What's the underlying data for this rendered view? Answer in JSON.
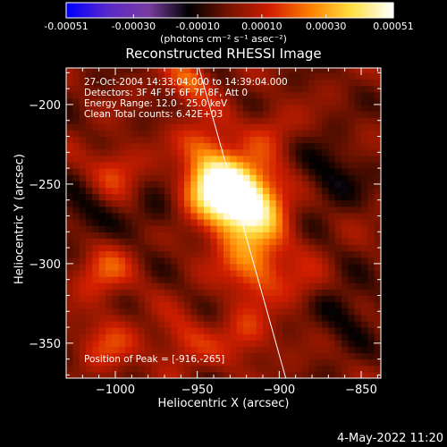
{
  "colors": {
    "background": "#000000",
    "foreground": "#ffffff",
    "colormap": [
      "#0000ff",
      "#5a28c8",
      "#7a3ca0",
      "#000000",
      "#781400",
      "#d21e00",
      "#ff8000",
      "#ffe040",
      "#ffffff"
    ]
  },
  "colorbar": {
    "tick_labels": [
      "-0.00051",
      "-0.00030",
      "-0.00010",
      "0.00010",
      "0.00030",
      "0.00051"
    ],
    "tick_values": [
      -0.00051,
      -0.0003,
      -0.0001,
      0.0001,
      0.0003,
      0.00051
    ],
    "range": [
      -0.00051,
      0.00051
    ],
    "units_label": "(photons cm⁻² s⁻¹ asec⁻²)"
  },
  "chart_data": {
    "type": "heatmap",
    "title": "Reconstructed RHESSI Image",
    "xlabel": "Heliocentric X (arcsec)",
    "ylabel": "Heliocentric Y (arcsec)",
    "xlim": [
      -1030,
      -838
    ],
    "ylim": [
      -372,
      -177
    ],
    "x_ticks": [
      -1000,
      -950,
      -900,
      -850
    ],
    "y_ticks": [
      -350,
      -300,
      -250,
      -200
    ],
    "x_tick_labels": [
      "−1000",
      "−950",
      "−900",
      "−850"
    ],
    "y_tick_labels": [
      "−350",
      "−300",
      "−250",
      "−200"
    ],
    "annotations": [
      "27-Oct-2004 14:33:04.000 to 14:39:04.000",
      "Detectors: 3F 4F 5F 6F 7F 8F, Att 0",
      "Energy Range: 12.0 - 25.0 keV",
      "Clean     Total counts: 6.42E+03"
    ],
    "peak_label": "Position of Peak = [-916,-265]",
    "peak_position": [
      -916,
      -265
    ],
    "limb_line": [
      [
        -949,
        -177
      ],
      [
        -896,
        -372
      ]
    ],
    "sources": [
      {
        "x": -920,
        "y": -262,
        "amplitude": 1.0,
        "sigma": 16
      },
      {
        "x": -937,
        "y": -252,
        "amplitude": 0.85,
        "sigma": 14
      },
      {
        "x": -915,
        "y": -300,
        "amplitude": 0.5,
        "sigma": 14
      },
      {
        "x": -945,
        "y": -225,
        "amplitude": 0.35,
        "sigma": 12
      },
      {
        "x": -955,
        "y": -185,
        "amplitude": 0.4,
        "sigma": 10
      },
      {
        "x": -1000,
        "y": -240,
        "amplitude": 0.3,
        "sigma": 11
      },
      {
        "x": -1008,
        "y": -305,
        "amplitude": 0.35,
        "sigma": 12
      },
      {
        "x": -1005,
        "y": -350,
        "amplitude": 0.3,
        "sigma": 12
      },
      {
        "x": -960,
        "y": -350,
        "amplitude": 0.28,
        "sigma": 12
      },
      {
        "x": -920,
        "y": -345,
        "amplitude": 0.3,
        "sigma": 12
      },
      {
        "x": -905,
        "y": -215,
        "amplitude": 0.22,
        "sigma": 10
      },
      {
        "x": -885,
        "y": -315,
        "amplitude": 0.2,
        "sigma": 10
      },
      {
        "x": -870,
        "y": -245,
        "amplitude": -0.25,
        "sigma": 14
      },
      {
        "x": -860,
        "y": -330,
        "amplitude": -0.22,
        "sigma": 14
      },
      {
        "x": -1020,
        "y": -270,
        "amplitude": -0.22,
        "sigma": 12
      },
      {
        "x": -975,
        "y": -270,
        "amplitude": -0.18,
        "sigma": 10
      }
    ]
  },
  "footer": {
    "timestamp": "4-May-2022 11:20"
  }
}
